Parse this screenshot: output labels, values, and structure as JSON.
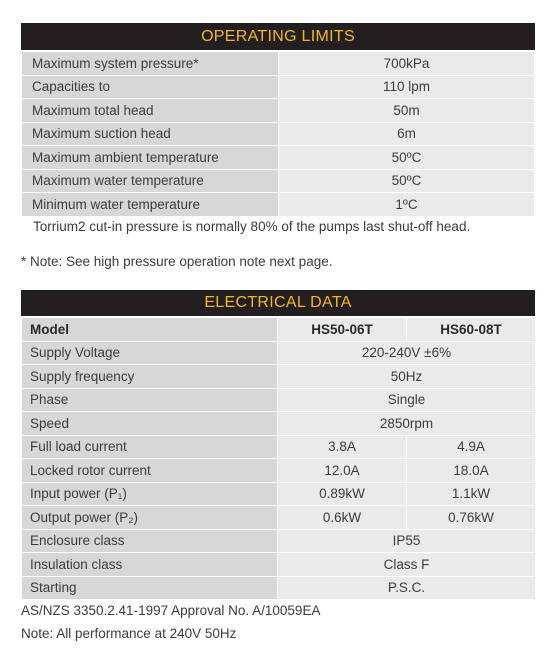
{
  "operating_limits": {
    "title": "OPERATING LIMITS",
    "rows": [
      {
        "label": "Maximum system pressure*",
        "value": "700kPa"
      },
      {
        "label": "Capacities to",
        "value": "110 lpm"
      },
      {
        "label": "Maximum total head",
        "value": "50m"
      },
      {
        "label": "Maximum suction head",
        "value": "6m"
      },
      {
        "label": "Maximum ambient temperature",
        "value": "50ºC"
      },
      {
        "label": "Maximum water temperature",
        "value": "50ºC"
      },
      {
        "label": "Minimum water temperature",
        "value": "1ºC"
      }
    ],
    "cutin_note": "Torrium2 cut-in pressure is normally 80% of the pumps last shut-off head.",
    "star_note": "* Note: See high pressure operation note next page."
  },
  "electrical_data": {
    "title": "ELECTRICAL DATA",
    "model_label": "Model",
    "models": [
      "HS50-06T",
      "HS60-08T"
    ],
    "shared_rows": {
      "supply_voltage": {
        "label": "Supply Voltage",
        "value": "220-240V ±6%"
      },
      "supply_frequency": {
        "label": "Supply frequency",
        "value": "50Hz"
      },
      "phase": {
        "label": "Phase",
        "value": "Single"
      },
      "speed": {
        "label": "Speed",
        "value": "2850rpm"
      },
      "enclosure_class": {
        "label": "Enclosure class",
        "value": "IP55"
      },
      "insulation_class": {
        "label": "Insulation class",
        "value": "Class F"
      },
      "starting": {
        "label": "Starting",
        "value": "P.S.C."
      }
    },
    "split_rows": {
      "full_load_current": {
        "label": "Full load current",
        "values": [
          "3.8A",
          "4.9A"
        ]
      },
      "locked_rotor_current": {
        "label": "Locked rotor current",
        "values": [
          "12.0A",
          "18.0A"
        ]
      },
      "input_power": {
        "label": "Input power (P₁)",
        "values": [
          "0.89kW",
          "1.1kW"
        ]
      },
      "output_power": {
        "label": "Output power (P₂)",
        "values": [
          "0.6kW",
          "0.76kW"
        ]
      }
    },
    "approval_note": "AS/NZS 3350.2.41-1997 Approval No. A/10059EA",
    "performance_note": "Note: All performance at 240V 50Hz"
  }
}
